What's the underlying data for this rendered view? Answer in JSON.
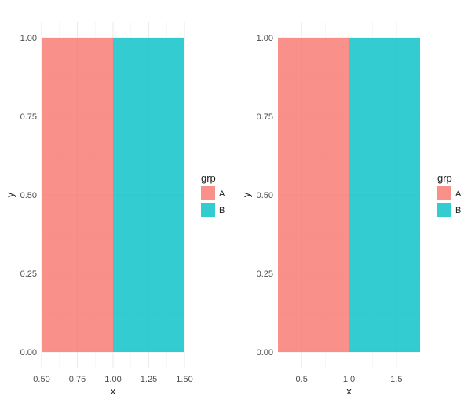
{
  "chart_data": [
    {
      "type": "bar",
      "x": [
        0.75,
        1.25
      ],
      "widths": [
        0.5,
        0.5
      ],
      "series": [
        {
          "name": "A",
          "values": [
            1.0,
            0
          ]
        },
        {
          "name": "B",
          "values": [
            0,
            1.0
          ]
        }
      ],
      "categories": [
        "A",
        "B"
      ],
      "xlabel": "x",
      "ylabel": "y",
      "xlim": [
        0.5,
        1.5
      ],
      "ylim": [
        0.0,
        1.0
      ],
      "xticks": [
        "0.50",
        "0.75",
        "1.00",
        "1.25",
        "1.50"
      ],
      "xtick_values": [
        0.5,
        0.75,
        1.0,
        1.25,
        1.5
      ],
      "yticks": [
        "0.00",
        "0.25",
        "0.50",
        "0.75",
        "1.00"
      ],
      "ytick_values": [
        0.0,
        0.25,
        0.5,
        0.75,
        1.0
      ],
      "grid": true,
      "legend": {
        "title": "grp",
        "placement": "right",
        "entries": [
          "A",
          "B"
        ]
      },
      "colors": {
        "A": "#F8766D",
        "B": "#00BFC4"
      }
    },
    {
      "type": "bar",
      "x": [
        0.625,
        1.375
      ],
      "widths": [
        0.75,
        0.75
      ],
      "series": [
        {
          "name": "A",
          "values": [
            1.0,
            0
          ]
        },
        {
          "name": "B",
          "values": [
            0,
            1.0
          ]
        }
      ],
      "categories": [
        "A",
        "B"
      ],
      "xlabel": "x",
      "ylabel": "y",
      "xlim": [
        0.25,
        1.75
      ],
      "ylim": [
        0.0,
        1.0
      ],
      "xticks": [
        "0.5",
        "1.0",
        "1.5"
      ],
      "xtick_values": [
        0.5,
        1.0,
        1.5
      ],
      "yticks": [
        "0.00",
        "0.25",
        "0.50",
        "0.75",
        "1.00"
      ],
      "ytick_values": [
        0.0,
        0.25,
        0.5,
        0.75,
        1.0
      ],
      "grid": true,
      "legend": {
        "title": "grp",
        "placement": "right",
        "entries": [
          "A",
          "B"
        ]
      },
      "colors": {
        "A": "#F8766D",
        "B": "#00BFC4"
      }
    }
  ]
}
